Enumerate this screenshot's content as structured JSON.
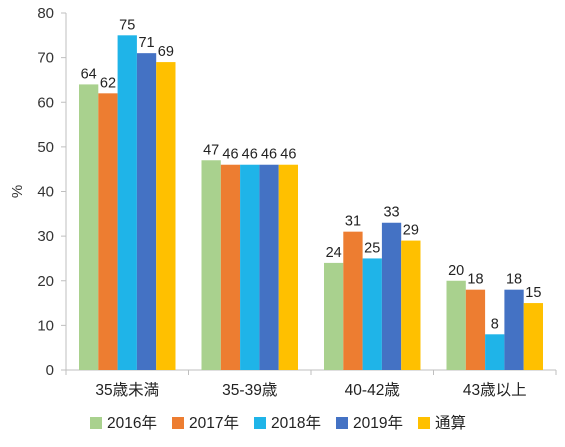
{
  "chart_data": {
    "type": "bar",
    "title": "",
    "xlabel": "",
    "ylabel": "%",
    "ylim": [
      0,
      80
    ],
    "yticks": [
      0,
      10,
      20,
      30,
      40,
      50,
      60,
      70,
      80
    ],
    "grid": false,
    "legend": "bottom",
    "categories": [
      "35歳未満",
      "35-39歳",
      "40-42歳",
      "43歳以上"
    ],
    "series": [
      {
        "name": "2016年",
        "color": "#a9d18e",
        "values": [
          64,
          47,
          24,
          20
        ]
      },
      {
        "name": "2017年",
        "color": "#ed7d31",
        "values": [
          62,
          46,
          31,
          18
        ]
      },
      {
        "name": "2018年",
        "color": "#1fb4e8",
        "values": [
          75,
          46,
          25,
          8
        ]
      },
      {
        "name": "2019年",
        "color": "#4472c4",
        "values": [
          71,
          46,
          33,
          18
        ]
      },
      {
        "name": "通算",
        "color": "#ffc000",
        "values": [
          69,
          46,
          29,
          15
        ]
      }
    ]
  }
}
